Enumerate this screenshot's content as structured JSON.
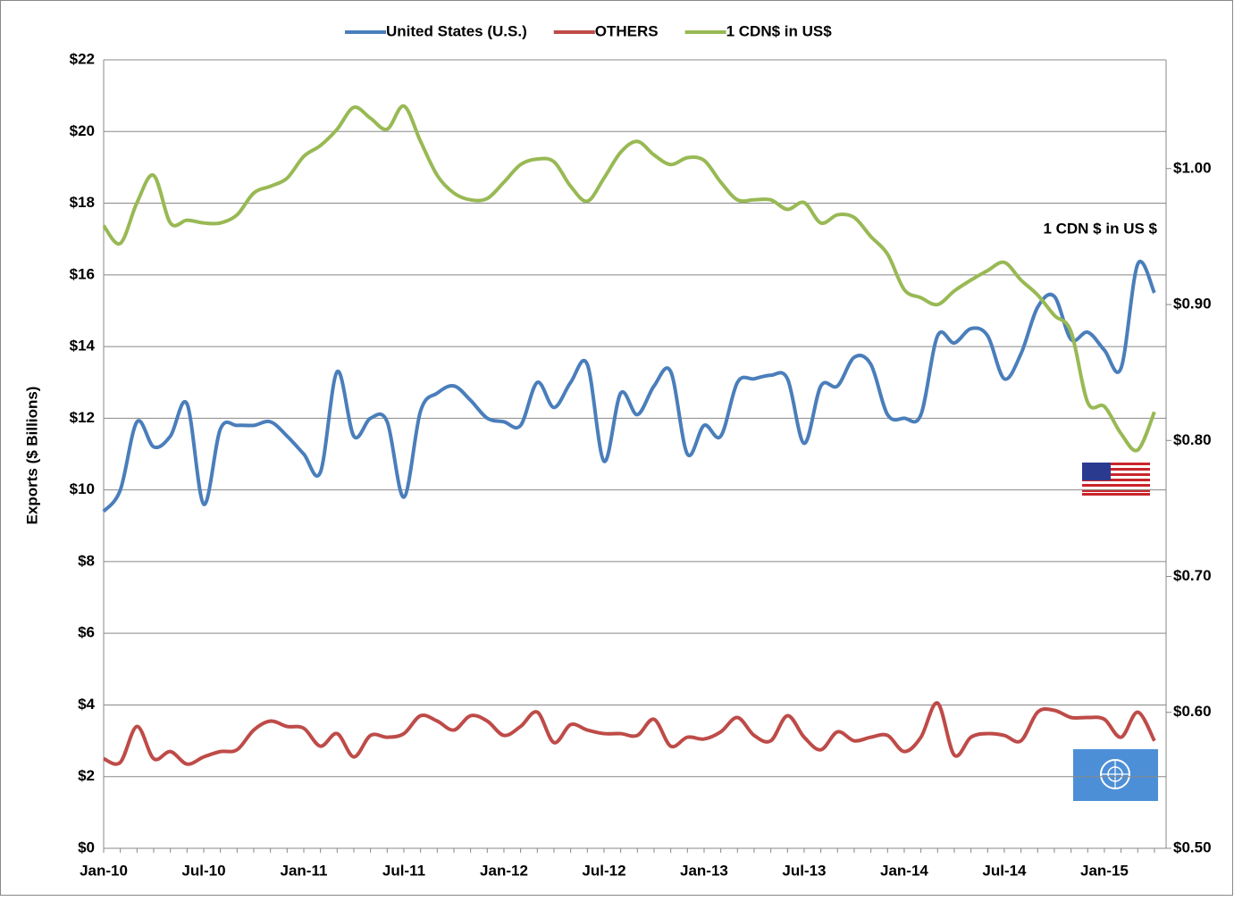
{
  "chart_data": {
    "type": "line",
    "y_label": "Exports  ($ Billions)",
    "annotation": "1 CDN $ in US $",
    "legend": "top",
    "grid": true,
    "categories": [
      "Jan-10",
      null,
      null,
      null,
      null,
      null,
      "Jul-10",
      null,
      null,
      null,
      null,
      null,
      "Jan-11",
      null,
      null,
      null,
      null,
      null,
      "Jul-11",
      null,
      null,
      null,
      null,
      null,
      "Jan-12",
      null,
      null,
      null,
      null,
      null,
      "Jul-12",
      null,
      null,
      null,
      null,
      null,
      "Jan-13",
      null,
      null,
      null,
      null,
      null,
      "Jul-13",
      null,
      null,
      null,
      null,
      null,
      "Jan-14",
      null,
      null,
      null,
      null,
      null,
      "Jul-14",
      null,
      null,
      null,
      null,
      null,
      "Jan-15",
      null,
      null,
      null
    ],
    "ylim": [
      0,
      22
    ],
    "yticks": [
      {
        "value": 0,
        "label": "$0"
      },
      {
        "value": 2,
        "label": "$2"
      },
      {
        "value": 4,
        "label": "$4"
      },
      {
        "value": 6,
        "label": "$6"
      },
      {
        "value": 8,
        "label": "$8"
      },
      {
        "value": 10,
        "label": "$10"
      },
      {
        "value": 12,
        "label": "$12"
      },
      {
        "value": 14,
        "label": "$14"
      },
      {
        "value": 16,
        "label": "$16"
      },
      {
        "value": 18,
        "label": "$18"
      },
      {
        "value": 20,
        "label": "$20"
      },
      {
        "value": 22,
        "label": "$22"
      }
    ],
    "y2lim": [
      0.5,
      1.08
    ],
    "y2ticks": [
      {
        "value": 0.5,
        "label": "$0.50"
      },
      {
        "value": 0.6,
        "label": "$0.60"
      },
      {
        "value": 0.7,
        "label": "$0.70"
      },
      {
        "value": 0.8,
        "label": "$0.80"
      },
      {
        "value": 0.9,
        "label": "$0.90"
      },
      {
        "value": 1.0,
        "label": "$1.00"
      }
    ],
    "series": [
      {
        "name": "United States (U.S.)",
        "color": "#4a7ebb",
        "values": [
          9.4,
          10.0,
          11.9,
          11.2,
          11.5,
          12.4,
          9.6,
          11.7,
          11.8,
          11.8,
          11.9,
          11.5,
          11.0,
          10.5,
          13.3,
          11.5,
          12.0,
          11.9,
          9.8,
          12.2,
          12.7,
          12.9,
          12.5,
          12.0,
          11.9,
          11.8,
          13.0,
          12.3,
          13.0,
          13.5,
          10.8,
          12.7,
          12.1,
          12.9,
          13.3,
          11.0,
          11.8,
          11.5,
          13.0,
          13.1,
          13.2,
          13.1,
          11.3,
          12.9,
          12.9,
          13.7,
          13.5,
          12.1,
          12.0,
          12.1,
          14.3,
          14.1,
          14.5,
          14.3,
          13.1,
          13.8,
          15.1,
          15.4,
          14.2,
          14.4,
          13.9,
          13.4,
          16.3,
          15.5
        ]
      },
      {
        "name": "OTHERS",
        "color": "#be4b48",
        "values": [
          2.5,
          2.4,
          3.4,
          2.5,
          2.7,
          2.35,
          2.55,
          2.7,
          2.75,
          3.3,
          3.55,
          3.4,
          3.35,
          2.85,
          3.2,
          2.55,
          3.15,
          3.1,
          3.2,
          3.7,
          3.55,
          3.3,
          3.7,
          3.55,
          3.15,
          3.4,
          3.8,
          2.95,
          3.45,
          3.3,
          3.2,
          3.2,
          3.15,
          3.6,
          2.85,
          3.1,
          3.05,
          3.25,
          3.65,
          3.15,
          3.0,
          3.7,
          3.1,
          2.75,
          3.25,
          3.0,
          3.1,
          3.15,
          2.7,
          3.1,
          4.05,
          2.6,
          3.1,
          3.2,
          3.15,
          3.0,
          3.8,
          3.85,
          3.65,
          3.65,
          3.6,
          3.1,
          3.8,
          3.0
        ]
      },
      {
        "name": "1 CDN$ in US$",
        "color": "#98b954",
        "axis": "y2",
        "values": [
          0.958,
          0.945,
          0.975,
          0.995,
          0.96,
          0.962,
          0.96,
          0.96,
          0.966,
          0.982,
          0.987,
          0.993,
          1.009,
          1.017,
          1.029,
          1.045,
          1.037,
          1.029,
          1.046,
          1.02,
          0.995,
          0.982,
          0.977,
          0.978,
          0.99,
          1.003,
          1.007,
          1.005,
          0.987,
          0.976,
          0.993,
          1.012,
          1.02,
          1.01,
          1.003,
          1.008,
          1.006,
          0.99,
          0.977,
          0.977,
          0.977,
          0.97,
          0.975,
          0.96,
          0.966,
          0.964,
          0.95,
          0.937,
          0.911,
          0.905,
          0.9,
          0.91,
          0.918,
          0.925,
          0.931,
          0.918,
          0.907,
          0.892,
          0.88,
          0.828,
          0.825,
          0.805,
          0.793,
          0.821
        ]
      }
    ]
  }
}
